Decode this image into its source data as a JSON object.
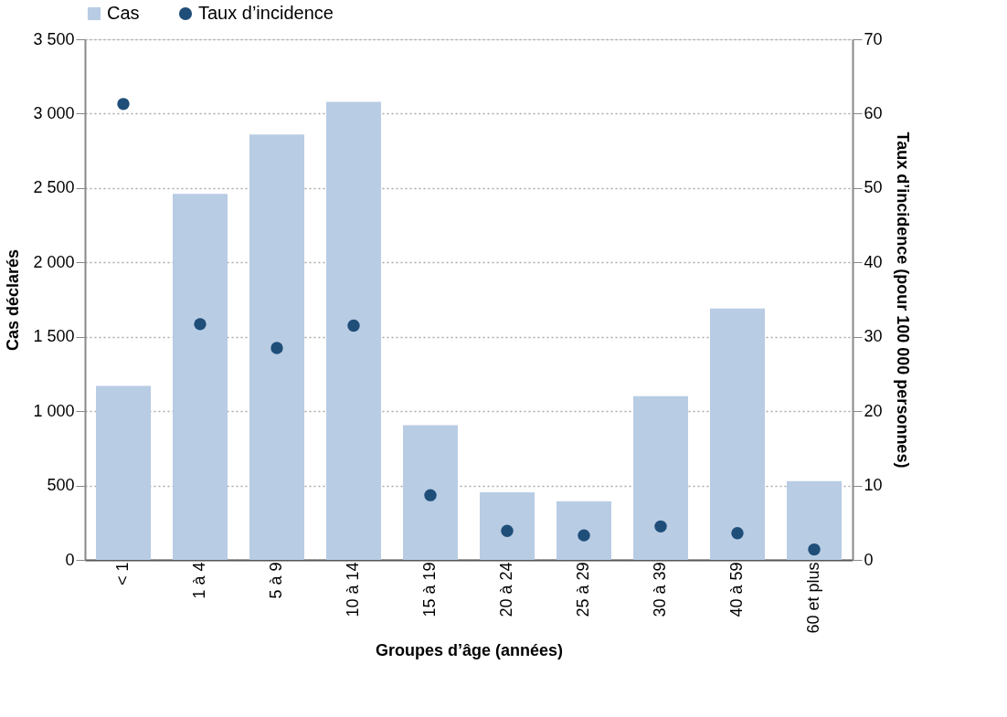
{
  "chart_data": {
    "type": "bar",
    "xlabel": "Groupes d’âge (années)",
    "ylabel": "Cas déclarés",
    "y2label": "Taux d’incidence (pour 100 000 personnes)",
    "categories": [
      "< 1",
      "1 à 4",
      "5 à 9",
      "10 à 14",
      "15 à 19",
      "20 à 24",
      "25 à 29",
      "30 à 39",
      "40 à 59",
      "60 et plus"
    ],
    "series": [
      {
        "name": "Cas",
        "color": "#b8cce4",
        "values": [
          1170,
          2460,
          2860,
          3080,
          905,
          455,
          395,
          1100,
          1690,
          530
        ]
      },
      {
        "name": "Taux d’incidence",
        "type": "scatter",
        "axis": "y2",
        "color": "#1f4e79",
        "values": [
          61.3,
          31.7,
          28.5,
          31.5,
          8.7,
          3.9,
          3.3,
          4.5,
          3.6,
          1.4
        ]
      }
    ],
    "ylim": [
      0,
      3500
    ],
    "yticks": [
      0,
      500,
      {
        "value": 1000,
        "label": "1 000"
      },
      {
        "value": 1500,
        "label": "1 500"
      },
      {
        "value": 2000,
        "label": "2 000"
      },
      {
        "value": 2500,
        "label": "2 500"
      },
      {
        "value": 3000,
        "label": "3 000"
      },
      {
        "value": 3500,
        "label": "3 500"
      }
    ],
    "y2lim": [
      0,
      70
    ],
    "y2ticks": [
      0,
      10,
      20,
      30,
      40,
      50,
      60,
      70
    ],
    "grid": "y",
    "legend": "top",
    "marker": "circle"
  }
}
